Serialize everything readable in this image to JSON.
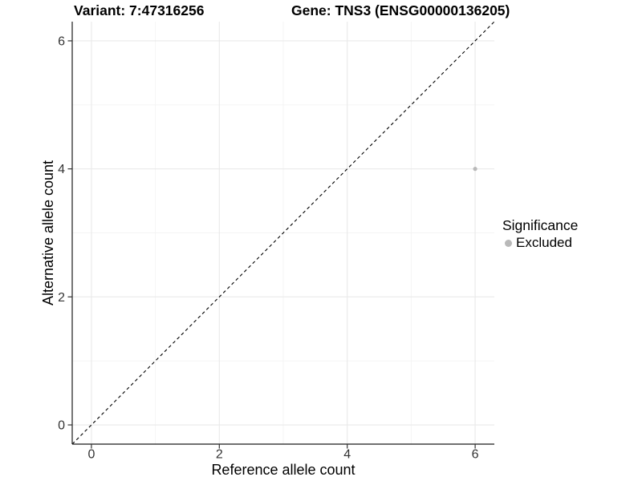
{
  "chart_data": {
    "type": "scatter",
    "title_left": "Variant: 7:47316256",
    "title_right": "Gene: TNS3 (ENSG00000136205)",
    "xlabel": "Reference allele count",
    "ylabel": "Alternative allele count",
    "xlim": [
      -0.3,
      6.3
    ],
    "ylim": [
      -0.3,
      6.3
    ],
    "xticks": [
      0,
      2,
      4,
      6
    ],
    "yticks": [
      0,
      2,
      4,
      6
    ],
    "xticks_minor": [
      1,
      3,
      5
    ],
    "yticks_minor": [
      1,
      3,
      5
    ],
    "grid": "major+minor",
    "identity_line": {
      "type": "abline",
      "slope": 1,
      "intercept": 0,
      "style": "dashed",
      "color": "#000000"
    },
    "series": [
      {
        "name": "Excluded",
        "color": "#b9b9b9",
        "points": [
          [
            6,
            4
          ]
        ]
      }
    ],
    "legend": {
      "title": "Significance",
      "position": "right",
      "items": [
        {
          "label": "Excluded",
          "color": "#b9b9b9",
          "marker": "circle"
        }
      ]
    },
    "style": {
      "background": "#ffffff",
      "grid_major_color": "#e9e9e9",
      "grid_minor_color": "#f4f4f4",
      "axis_color": "#1a1a1a",
      "tick_color": "#333333",
      "tick_label_color": "#333333",
      "text_color": "#000000"
    }
  }
}
